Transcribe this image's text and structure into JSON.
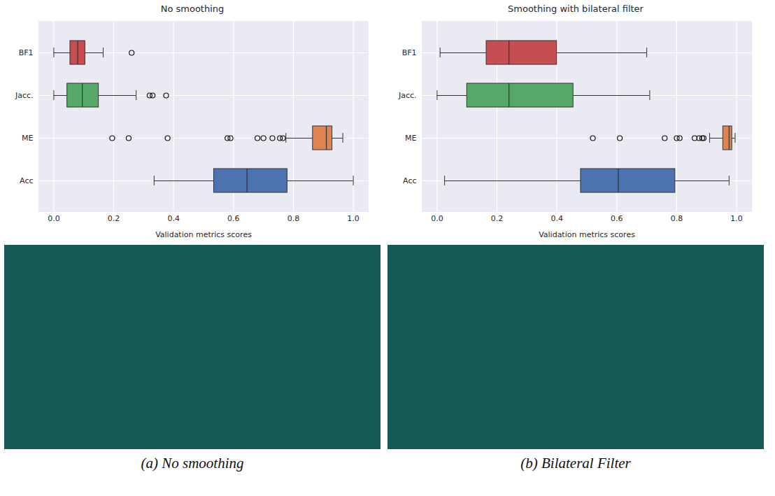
{
  "chart_data": [
    {
      "type": "box",
      "title": "No smoothing",
      "x_label": "Validation metrics scores",
      "caption": "(a) No smoothing",
      "orientation": "horizontal",
      "grid": true,
      "xlim": [
        -0.05,
        1.05
      ],
      "xticks": [
        {
          "value": 0,
          "label": "0.0"
        },
        {
          "value": 0.2,
          "label": "0.2"
        },
        {
          "value": 0.4,
          "label": "0.4"
        },
        {
          "value": 0.6,
          "label": "0.6"
        },
        {
          "value": 0.8,
          "label": "0.8"
        },
        {
          "value": 1,
          "label": "1.0"
        }
      ],
      "categories": [
        "BF1",
        "Jacc.",
        "ME",
        "Acc"
      ],
      "colors": [
        "#c44e52",
        "#55a868",
        "#dd8452",
        "#4c72b0"
      ],
      "boxes": [
        {
          "name": "BF1",
          "whisker_low": 0.0,
          "q1": 0.055,
          "median": 0.08,
          "q3": 0.105,
          "whisker_high": 0.165,
          "outliers": [
            0.26
          ]
        },
        {
          "name": "Jacc.",
          "whisker_low": 0.0,
          "q1": 0.045,
          "median": 0.095,
          "q3": 0.15,
          "whisker_high": 0.275,
          "outliers": [
            0.32,
            0.33,
            0.375
          ]
        },
        {
          "name": "ME",
          "whisker_low": 0.775,
          "q1": 0.865,
          "median": 0.91,
          "q3": 0.93,
          "whisker_high": 0.965,
          "outliers": [
            0.195,
            0.25,
            0.38,
            0.58,
            0.59,
            0.68,
            0.7,
            0.73,
            0.755,
            0.765
          ]
        },
        {
          "name": "Acc",
          "whisker_low": 0.335,
          "q1": 0.535,
          "median": 0.645,
          "q3": 0.78,
          "whisker_high": 1.0,
          "outliers": []
        }
      ]
    },
    {
      "type": "box",
      "title": "Smoothing with bilateral filter",
      "x_label": "Validation metrics scores",
      "caption": "(b) Bilateral Filter",
      "orientation": "horizontal",
      "grid": true,
      "xlim": [
        -0.05,
        1.05
      ],
      "xticks": [
        {
          "value": 0,
          "label": "0.0"
        },
        {
          "value": 0.2,
          "label": "0.2"
        },
        {
          "value": 0.4,
          "label": "0.4"
        },
        {
          "value": 0.6,
          "label": "0.6"
        },
        {
          "value": 0.8,
          "label": "0.8"
        },
        {
          "value": 1,
          "label": "1.0"
        }
      ],
      "categories": [
        "BF1",
        "Jacc.",
        "ME",
        "Acc"
      ],
      "colors": [
        "#c44e52",
        "#55a868",
        "#dd8452",
        "#4c72b0"
      ],
      "boxes": [
        {
          "name": "BF1",
          "whisker_low": 0.01,
          "q1": 0.165,
          "median": 0.24,
          "q3": 0.4,
          "whisker_high": 0.7,
          "outliers": []
        },
        {
          "name": "Jacc.",
          "whisker_low": 0.0,
          "q1": 0.1,
          "median": 0.24,
          "q3": 0.455,
          "whisker_high": 0.71,
          "outliers": []
        },
        {
          "name": "ME",
          "whisker_low": 0.91,
          "q1": 0.955,
          "median": 0.975,
          "q3": 0.985,
          "whisker_high": 0.995,
          "outliers": [
            0.52,
            0.61,
            0.76,
            0.8,
            0.81,
            0.86,
            0.875,
            0.885,
            0.89
          ]
        },
        {
          "name": "Acc",
          "whisker_low": 0.025,
          "q1": 0.48,
          "median": 0.605,
          "q3": 0.795,
          "whisker_high": 0.975,
          "outliers": []
        }
      ]
    }
  ]
}
